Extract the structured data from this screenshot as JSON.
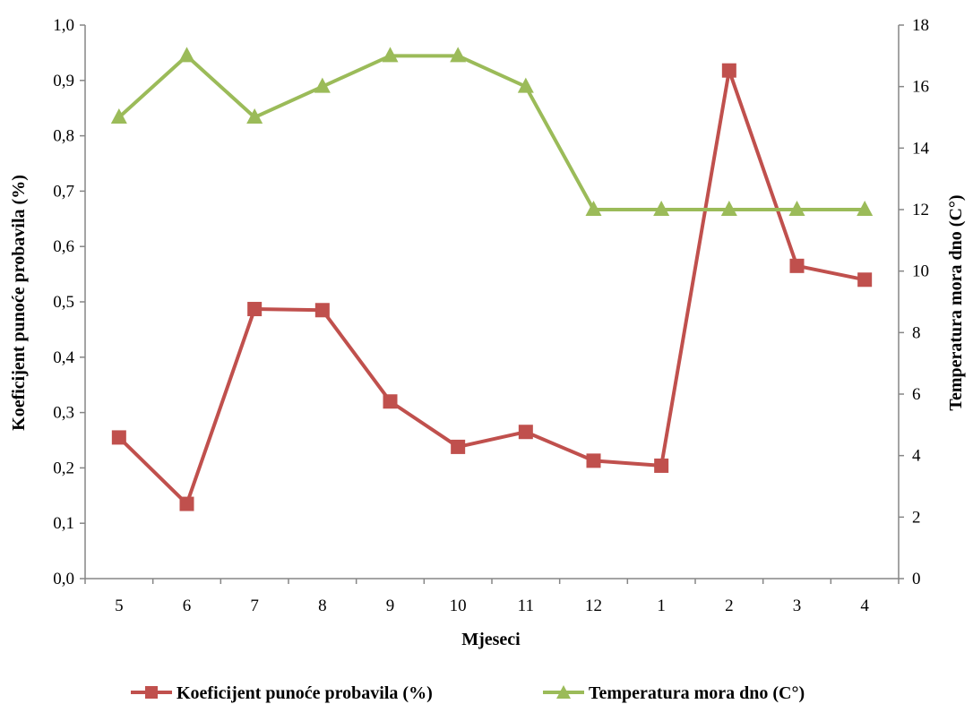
{
  "chart_data": {
    "type": "line",
    "title": "",
    "xlabel": "Mjeseci",
    "ylabel": "Koeficijent punoće probavila (%)",
    "y2label": "Temperatura mora dno (C°)",
    "categories": [
      "5",
      "6",
      "7",
      "8",
      "9",
      "10",
      "11",
      "12",
      "1",
      "2",
      "3",
      "4"
    ],
    "ylim": [
      0,
      1.0
    ],
    "y_ticks": [
      "0,0",
      "0,1",
      "0,2",
      "0,3",
      "0,4",
      "0,5",
      "0,6",
      "0,7",
      "0,8",
      "0,9",
      "1,0"
    ],
    "y2lim": [
      0,
      18
    ],
    "y2_ticks": [
      "0",
      "2",
      "4",
      "6",
      "8",
      "10",
      "12",
      "14",
      "16",
      "18"
    ],
    "grid": false,
    "legend_position": "bottom",
    "series": [
      {
        "name": "Koeficijent punoće probavila (%)",
        "axis": "left",
        "marker": "square",
        "color": "#C0504D",
        "values": [
          0.255,
          0.135,
          0.487,
          0.485,
          0.32,
          0.238,
          0.265,
          0.213,
          0.204,
          0.918,
          0.565,
          0.54
        ]
      },
      {
        "name": "Temperatura mora dno (C°)",
        "axis": "right",
        "marker": "triangle",
        "color": "#9BBB59",
        "values": [
          15,
          17,
          15,
          16,
          17,
          17,
          16,
          12,
          12,
          12,
          12,
          12
        ]
      }
    ]
  }
}
